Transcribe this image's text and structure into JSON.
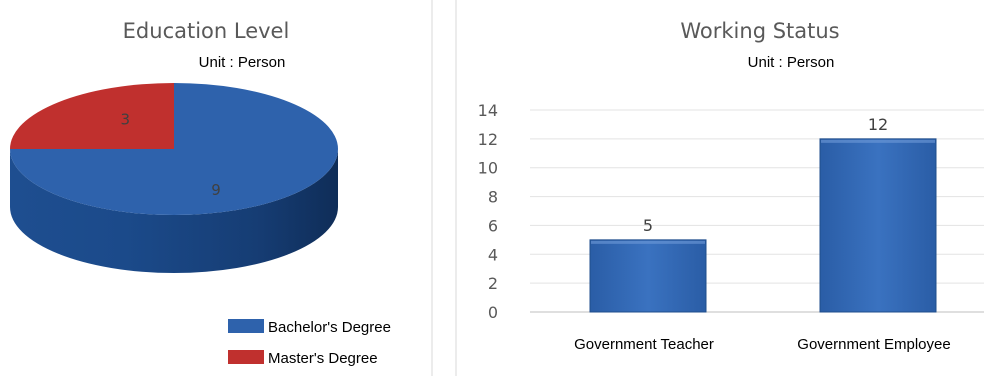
{
  "chart_data": [
    {
      "type": "pie",
      "title": "Education Level",
      "subtitle": "Unit : Person",
      "categories": [
        "Bachelor's Degree",
        "Master's Degree"
      ],
      "values": [
        9,
        3
      ],
      "colors": [
        "#2E62AC",
        "#C0302E"
      ],
      "legend_position": "bottom-right",
      "style": "3d"
    },
    {
      "type": "bar",
      "title": "Working Status",
      "subtitle": "Unit : Person",
      "categories": [
        "Government Teacher",
        "Government Employee"
      ],
      "values": [
        5,
        12
      ],
      "ylim": [
        0,
        14
      ],
      "yticks": [
        0,
        2,
        4,
        6,
        8,
        10,
        12,
        14
      ],
      "grid": true,
      "colors": [
        "#2E62AC"
      ],
      "data_labels": true
    }
  ]
}
